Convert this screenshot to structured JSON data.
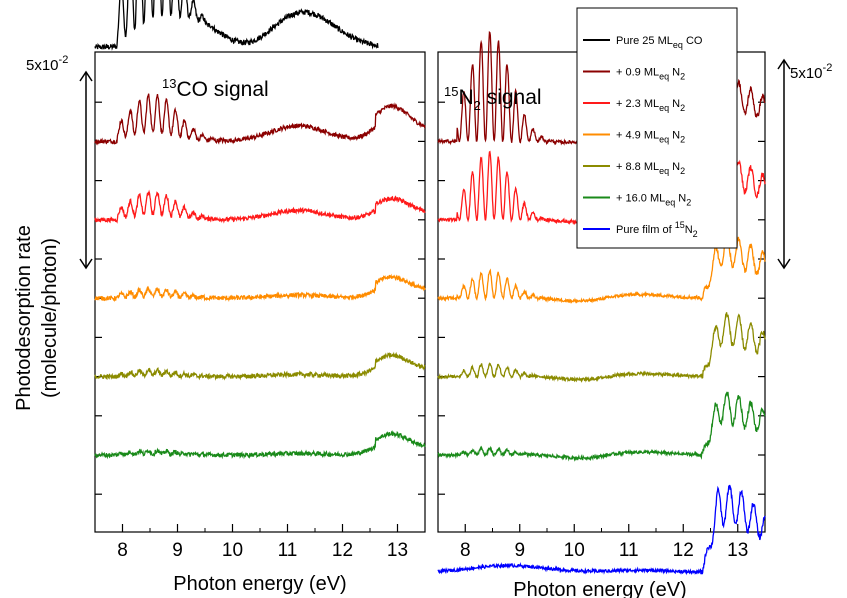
{
  "chart_data": [
    {
      "type": "line",
      "panel_label": "13CO signal",
      "panel_label_parts": {
        "sup": "13",
        "text": "CO signal"
      },
      "xlabel": "Photon energy (eV)",
      "ylabel": "Photodesorption rate",
      "ylabel_units": "(molecule/photon)",
      "xlim": [
        7.5,
        13.5
      ],
      "xticks": [
        8,
        9,
        10,
        11,
        12,
        13
      ],
      "scale_bar": {
        "mantissa": "5x10",
        "exponent": "-2",
        "value": 0.05
      },
      "y_offset_note": "curves vertically offset",
      "series": [
        {
          "name": "Pure 25 ML_eq CO",
          "color": "#000000",
          "baseline": 0.1,
          "shape": "co_pure"
        },
        {
          "name": "+ 0.9 ML_eq N2",
          "color": "#8b0000",
          "baseline": 0.08,
          "shape": "co_mix",
          "amp": 0.5
        },
        {
          "name": "+ 2.3 ML_eq N2",
          "color": "#ff1a1a",
          "baseline": 0.06,
          "shape": "co_mix",
          "amp": 0.3
        },
        {
          "name": "+ 4.9 ML_eq N2",
          "color": "#ff8c00",
          "baseline": 0.04,
          "shape": "co_mix",
          "amp": 0.1
        },
        {
          "name": "+ 8.8 ML_eq N2",
          "color": "#8b8b00",
          "baseline": 0.02,
          "shape": "co_mix",
          "amp": 0.07
        },
        {
          "name": "+ 16.0 ML_eq N2",
          "color": "#1a8a1a",
          "baseline": 0.0,
          "shape": "co_mix",
          "amp": 0.05
        }
      ]
    },
    {
      "type": "line",
      "panel_label": "15N2 signal",
      "panel_label_parts": {
        "sup": "15",
        "text": "N",
        "sub": "2",
        "rest": " signal"
      },
      "xlabel": "Photon energy (eV)",
      "xlim": [
        7.5,
        13.5
      ],
      "xticks": [
        8,
        9,
        10,
        11,
        12,
        13
      ],
      "scale_bar": {
        "mantissa": "5x10",
        "exponent": "-2",
        "value": 0.05
      },
      "series": [
        {
          "name": "+ 0.9 ML_eq N2",
          "color": "#8b0000",
          "baseline": 0.08,
          "shape": "n2_mix",
          "amp": 1.0
        },
        {
          "name": "+ 2.3 ML_eq N2",
          "color": "#ff1a1a",
          "baseline": 0.06,
          "shape": "n2_mix",
          "amp": 0.62
        },
        {
          "name": "+ 4.9 ML_eq N2",
          "color": "#ff8c00",
          "baseline": 0.04,
          "shape": "n2_mix",
          "amp": 0.25
        },
        {
          "name": "+ 8.8 ML_eq N2",
          "color": "#8b8b00",
          "baseline": 0.02,
          "shape": "n2_mix",
          "amp": 0.12
        },
        {
          "name": "+ 16.0 ML_eq N2",
          "color": "#1a8a1a",
          "baseline": 0.0,
          "shape": "n2_mix",
          "amp": 0.06
        },
        {
          "name": "Pure film of 15N2",
          "color": "#0000ff",
          "baseline": -0.03,
          "shape": "n2_pure",
          "amp": 0.05
        }
      ]
    }
  ],
  "legend": [
    {
      "pre": "Pure 25 ML",
      "sub": "eq",
      "post": " CO",
      "color": "#000000"
    },
    {
      "pre": "+ 0.9 ML",
      "sub": "eq",
      "post": " N",
      "sub2": "2",
      "color": "#8b0000"
    },
    {
      "pre": "+ 2.3 ML",
      "sub": "eq",
      "post": " N",
      "sub2": "2",
      "color": "#ff1a1a"
    },
    {
      "pre": "+ 4.9 ML",
      "sub": "eq",
      "post": " N",
      "sub2": "2",
      "color": "#ff8c00"
    },
    {
      "pre": "+ 8.8 ML",
      "sub": "eq",
      "post": " N",
      "sub2": "2",
      "color": "#8b8b00"
    },
    {
      "pre": "+ 16.0 ML",
      "sub": "eq",
      "post": " N",
      "sub2": "2",
      "color": "#1a8a1a"
    },
    {
      "pre": "Pure film of ",
      "sup": "15",
      "post": "N",
      "sub2": "2",
      "color": "#0000ff"
    }
  ],
  "legend_placement": "top-right of right panel"
}
